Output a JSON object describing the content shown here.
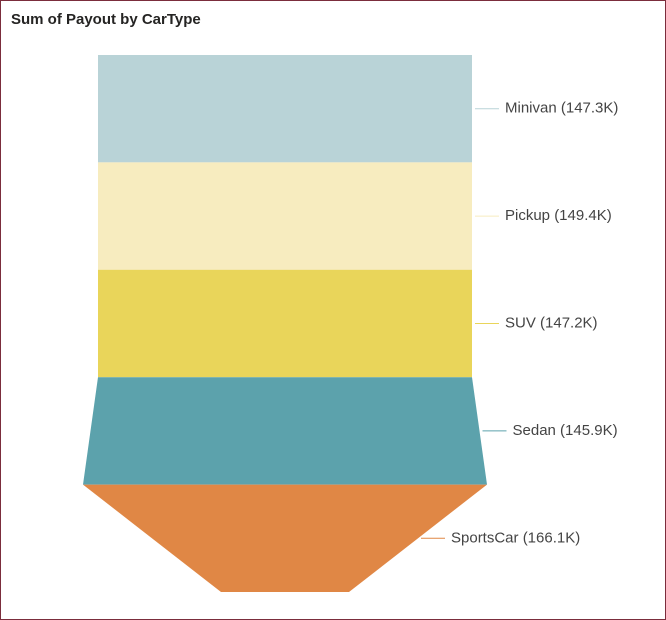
{
  "chart_data": {
    "type": "funnel",
    "title": "Sum of Payout by CarType",
    "values": [
      147300,
      149400,
      147200,
      145900,
      166100
    ],
    "value_labels": [
      "Minivan (147.3K)",
      "Pickup (149.4K)",
      "SUV (147.2K)",
      "Sedan (145.9K)",
      "SportsCar (166.1K)"
    ],
    "colors": [
      "#b9d3d7",
      "#f7ecbf",
      "#e9d55a",
      "#5ca2ac",
      "#e08745"
    ]
  }
}
